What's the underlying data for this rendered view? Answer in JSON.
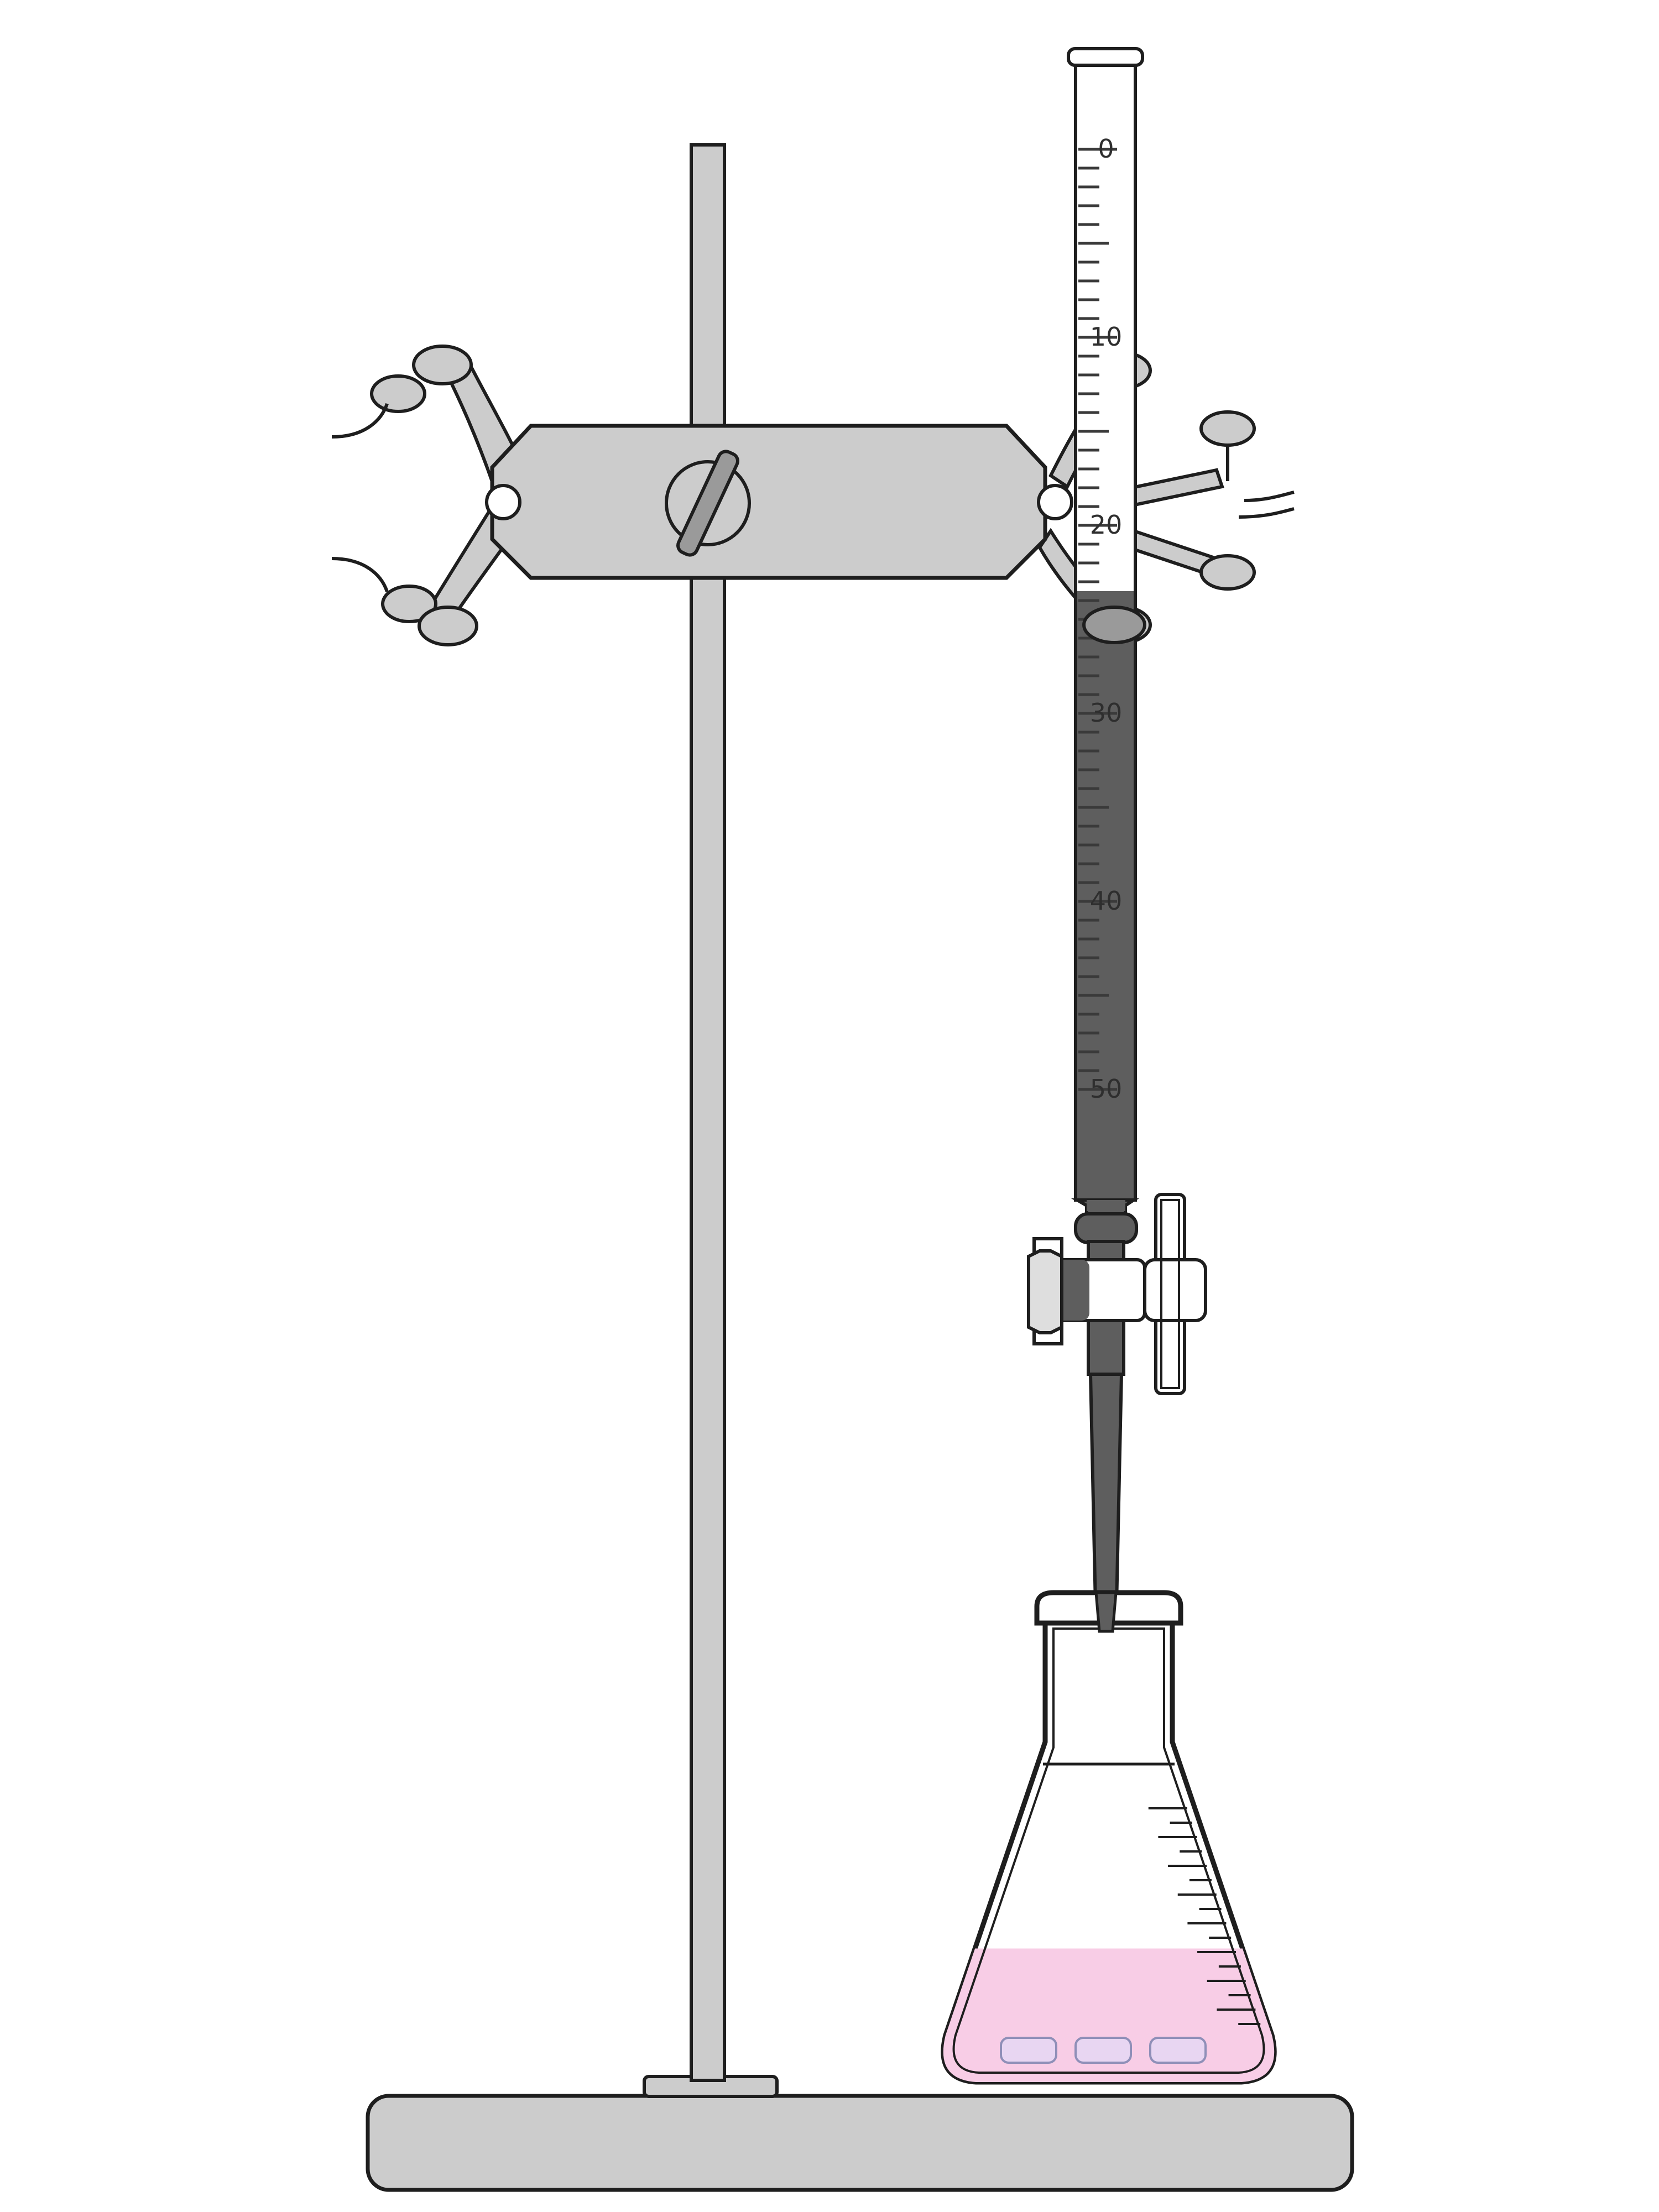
{
  "burette": {
    "scale_labels": [
      "0",
      "10",
      "20",
      "30",
      "40",
      "50"
    ],
    "liquid_level_ml": 23.5,
    "liquid_color": "#5e5e5e"
  },
  "flask": {
    "liquid_color": "#f8cde6",
    "fill_fraction": 0.42
  },
  "apparatus_colors": {
    "stand": "#cccccc",
    "outline": "#1e1e1e",
    "glass": "#ffffff"
  }
}
